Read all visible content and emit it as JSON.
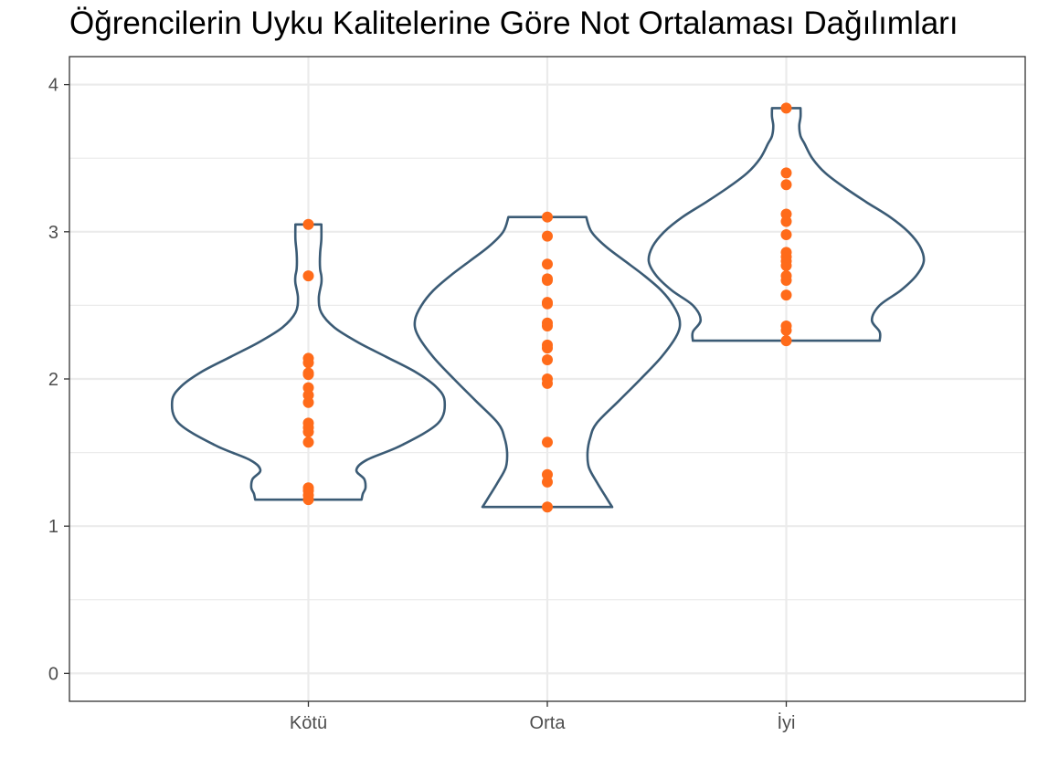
{
  "chart_data": {
    "type": "violin",
    "title": "Öğrencilerin Uyku Kalitelerine Göre Not Ortalaması Dağılımları",
    "xlabel": "",
    "ylabel": "",
    "categories": [
      "Kötü",
      "Orta",
      "İyi"
    ],
    "ylim": [
      -0.19,
      4.19
    ],
    "yticks": [
      0,
      1,
      2,
      3,
      4
    ],
    "grid": true,
    "colors": {
      "violin_outline": "#3b5b75",
      "points": "#ff6b1a",
      "grid": "#ebebeb",
      "border": "#333333"
    },
    "series": [
      {
        "category": "Kötü",
        "points": [
          1.18,
          1.21,
          1.24,
          1.26,
          1.57,
          1.64,
          1.67,
          1.7,
          1.84,
          1.89,
          1.94,
          2.03,
          2.04,
          2.11,
          2.14,
          2.7,
          3.05
        ],
        "violin_profile": [
          [
            1.18,
            0.41
          ],
          [
            1.22,
            0.42
          ],
          [
            1.26,
            0.44
          ],
          [
            1.32,
            0.43
          ],
          [
            1.38,
            0.37
          ],
          [
            1.45,
            0.45
          ],
          [
            1.55,
            0.72
          ],
          [
            1.7,
            1.0
          ],
          [
            1.85,
            1.05
          ],
          [
            1.95,
            0.98
          ],
          [
            2.05,
            0.82
          ],
          [
            2.15,
            0.6
          ],
          [
            2.25,
            0.38
          ],
          [
            2.35,
            0.2
          ],
          [
            2.45,
            0.1
          ],
          [
            2.55,
            0.08
          ],
          [
            2.65,
            0.1
          ],
          [
            2.7,
            0.1
          ],
          [
            2.75,
            0.09
          ],
          [
            2.85,
            0.09
          ],
          [
            2.95,
            0.1
          ],
          [
            3.05,
            0.1
          ]
        ]
      },
      {
        "category": "Orta",
        "points": [
          1.13,
          1.3,
          1.35,
          1.57,
          1.97,
          2.0,
          2.13,
          2.21,
          2.23,
          2.36,
          2.38,
          2.51,
          2.52,
          2.67,
          2.68,
          2.78,
          2.97,
          3.1
        ],
        "violin_profile": [
          [
            1.13,
            0.5
          ],
          [
            1.2,
            0.45
          ],
          [
            1.3,
            0.38
          ],
          [
            1.4,
            0.32
          ],
          [
            1.5,
            0.31
          ],
          [
            1.6,
            0.33
          ],
          [
            1.7,
            0.38
          ],
          [
            1.85,
            0.55
          ],
          [
            2.0,
            0.72
          ],
          [
            2.15,
            0.88
          ],
          [
            2.3,
            1.0
          ],
          [
            2.4,
            1.02
          ],
          [
            2.5,
            0.97
          ],
          [
            2.6,
            0.88
          ],
          [
            2.7,
            0.75
          ],
          [
            2.8,
            0.6
          ],
          [
            2.9,
            0.45
          ],
          [
            3.0,
            0.34
          ],
          [
            3.1,
            0.3
          ]
        ]
      },
      {
        "category": "İyi",
        "points": [
          2.26,
          2.33,
          2.36,
          2.57,
          2.67,
          2.7,
          2.77,
          2.8,
          2.83,
          2.86,
          2.98,
          3.07,
          3.12,
          3.32,
          3.4,
          3.84
        ],
        "violin_profile": [
          [
            2.26,
            0.72
          ],
          [
            2.32,
            0.72
          ],
          [
            2.4,
            0.66
          ],
          [
            2.5,
            0.72
          ],
          [
            2.6,
            0.88
          ],
          [
            2.7,
            1.0
          ],
          [
            2.8,
            1.06
          ],
          [
            2.9,
            1.03
          ],
          [
            3.0,
            0.94
          ],
          [
            3.1,
            0.8
          ],
          [
            3.2,
            0.62
          ],
          [
            3.3,
            0.45
          ],
          [
            3.4,
            0.3
          ],
          [
            3.5,
            0.2
          ],
          [
            3.6,
            0.14
          ],
          [
            3.65,
            0.11
          ],
          [
            3.72,
            0.1
          ],
          [
            3.78,
            0.11
          ],
          [
            3.84,
            0.11
          ]
        ]
      }
    ]
  }
}
